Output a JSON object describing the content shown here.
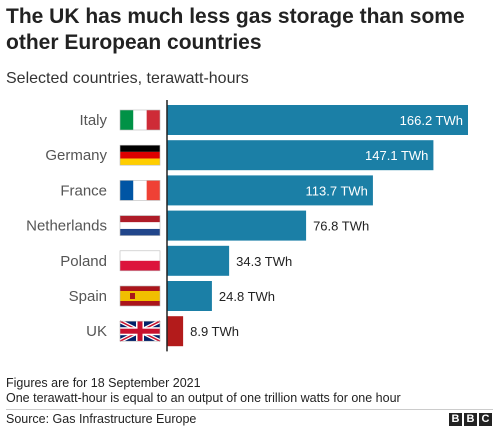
{
  "chart_data": {
    "type": "bar",
    "orientation": "horizontal",
    "title": "The UK has much less gas storage than some other European countries",
    "subtitle": "Selected countries, terawatt-hours",
    "categories": [
      "Italy",
      "Germany",
      "France",
      "Netherlands",
      "Poland",
      "Spain",
      "UK"
    ],
    "values": [
      166.2,
      147.1,
      113.7,
      76.8,
      34.3,
      24.8,
      8.9
    ],
    "value_labels": [
      "166.2 TWh",
      "147.1 TWh",
      "113.7 TWh",
      "76.8 TWh",
      "34.3 TWh",
      "24.8 TWh",
      "8.9 TWh"
    ],
    "flags": [
      "italy-flag-icon",
      "germany-flag-icon",
      "france-flag-icon",
      "netherlands-flag-icon",
      "poland-flag-icon",
      "spain-flag-icon",
      "uk-flag-icon"
    ],
    "bar_colors": [
      "#1b7fa6",
      "#1b7fa6",
      "#1b7fa6",
      "#1b7fa6",
      "#1b7fa6",
      "#1b7fa6",
      "#b31b1b"
    ],
    "xlim": [
      0,
      166.2
    ],
    "grid": false,
    "legend": "none"
  },
  "notes": [
    "Figures are for 18 September 2021",
    "One terawatt-hour is equal to an output of one trillion watts for one hour"
  ],
  "source": "Source: Gas Infrastructure Europe",
  "logo_letters": [
    "B",
    "B",
    "C"
  ]
}
